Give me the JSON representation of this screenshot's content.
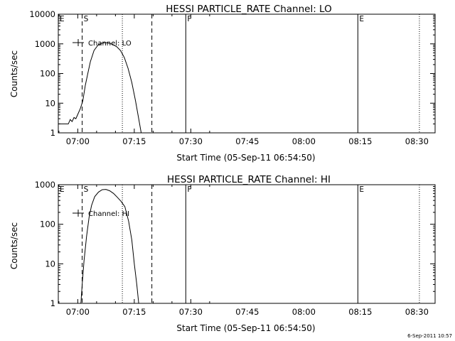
{
  "chart_data": [
    {
      "type": "line",
      "title": "HESSI PARTICLE_RATE Channel: LO",
      "xlabel": "Start Time (05-Sep-11 06:54:50)",
      "ylabel": "Counts/sec",
      "xlim": [
        "06:54:50",
        "08:34:50"
      ],
      "ylim": [
        1,
        10000
      ],
      "yscale": "log",
      "grid": false,
      "xticks": [
        "07:00",
        "07:15",
        "07:30",
        "07:45",
        "08:00",
        "08:15",
        "08:30"
      ],
      "yticks": [
        "1",
        "10",
        "100",
        "1000",
        "10000"
      ],
      "legend": {
        "position": "top-left",
        "entries": [
          "Channel: LO"
        ]
      },
      "series": [
        {
          "name": "Channel: LO",
          "x": [
            "06:54:50",
            "06:57:30",
            "06:58:00",
            "06:58:30",
            "06:59:00",
            "06:59:30",
            "07:00:00",
            "07:00:40",
            "07:01:20",
            "07:02:00",
            "07:02:40",
            "07:03:20",
            "07:04:20",
            "07:05:20",
            "07:06:20",
            "07:07:20",
            "07:08:20",
            "07:09:20",
            "07:10:20",
            "07:11:20",
            "07:12:20",
            "07:13:20",
            "07:14:20",
            "07:15:20",
            "07:16:10",
            "07:16:50"
          ],
          "y": [
            2,
            2,
            2.8,
            2.4,
            3.3,
            3,
            4.2,
            6.5,
            12,
            40,
            100,
            250,
            600,
            900,
            1050,
            1100,
            1050,
            950,
            800,
            600,
            350,
            150,
            50,
            12,
            3,
            1
          ]
        }
      ],
      "markers": [
        {
          "label": "E",
          "time": "06:54:50",
          "style": "solid"
        },
        {
          "label": "S",
          "time": "07:01:10",
          "style": "dashed"
        },
        {
          "label": "",
          "time": "07:11:50",
          "style": "dotted"
        },
        {
          "label": "",
          "time": "07:19:40",
          "style": "dashed"
        },
        {
          "label": "F",
          "time": "07:28:40",
          "style": "solid"
        },
        {
          "label": "E",
          "time": "08:14:20",
          "style": "solid"
        },
        {
          "label": "",
          "time": "08:30:40",
          "style": "dotted"
        }
      ]
    },
    {
      "type": "line",
      "title": "HESSI PARTICLE_RATE Channel: HI",
      "xlabel": "Start Time (05-Sep-11 06:54:50)",
      "ylabel": "Counts/sec",
      "xlim": [
        "06:54:50",
        "08:34:50"
      ],
      "ylim": [
        1,
        1000
      ],
      "yscale": "log",
      "grid": false,
      "xticks": [
        "07:00",
        "07:15",
        "07:30",
        "07:45",
        "08:00",
        "08:15",
        "08:30"
      ],
      "yticks": [
        "1",
        "10",
        "100",
        "1000"
      ],
      "legend": {
        "position": "top-left",
        "entries": [
          "Channel: HI"
        ]
      },
      "series": [
        {
          "name": "Channel: HI",
          "x": [
            "07:00:50",
            "07:01:10",
            "07:01:40",
            "07:02:20",
            "07:03:00",
            "07:03:40",
            "07:04:30",
            "07:05:30",
            "07:06:30",
            "07:07:30",
            "07:08:30",
            "07:09:30",
            "07:10:30",
            "07:11:30",
            "07:12:30",
            "07:13:30",
            "07:14:20",
            "07:15:00",
            "07:15:40",
            "07:16:10"
          ],
          "y": [
            1,
            3,
            12,
            50,
            150,
            300,
            500,
            650,
            750,
            760,
            700,
            600,
            480,
            380,
            280,
            120,
            40,
            10,
            3,
            1
          ]
        }
      ],
      "markers": [
        {
          "label": "E",
          "time": "06:54:50",
          "style": "solid"
        },
        {
          "label": "S",
          "time": "07:01:10",
          "style": "dashed"
        },
        {
          "label": "",
          "time": "07:11:50",
          "style": "dotted"
        },
        {
          "label": "",
          "time": "07:19:40",
          "style": "dashed"
        },
        {
          "label": "F",
          "time": "07:28:40",
          "style": "solid"
        },
        {
          "label": "E",
          "time": "08:14:20",
          "style": "solid"
        },
        {
          "label": "",
          "time": "08:30:40",
          "style": "dotted"
        }
      ]
    }
  ],
  "footer": {
    "timestamp": "6-Sep-2011 10:57"
  }
}
